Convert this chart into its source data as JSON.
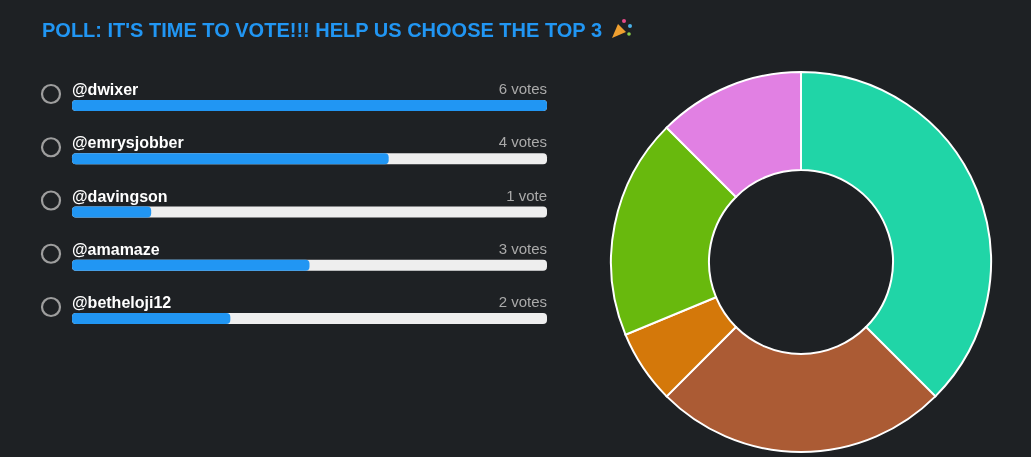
{
  "chart_data": [
    {
      "type": "bar",
      "orientation": "horizontal",
      "title": "POLL: IT'S TIME TO VOTE!!! HELP US CHOOSE THE TOP 3",
      "categories": [
        "@dwixer",
        "@emrysjobber",
        "@davingson",
        "@amamaze",
        "@betheloji12"
      ],
      "values": [
        6,
        4,
        1,
        3,
        2
      ],
      "color": "#2196f3",
      "value_labels": [
        "6 votes",
        "4 votes",
        "1 vote",
        "3 votes",
        "2 votes"
      ]
    },
    {
      "type": "donut",
      "categories": [
        null,
        null,
        null,
        null,
        null
      ],
      "values": [
        37.5,
        25,
        6.25,
        18.75,
        12.5
      ],
      "colors": [
        "#20d5a7",
        "#ab5b34",
        "#d4780a",
        "#68b90d",
        "#e180e3"
      ]
    }
  ]
}
